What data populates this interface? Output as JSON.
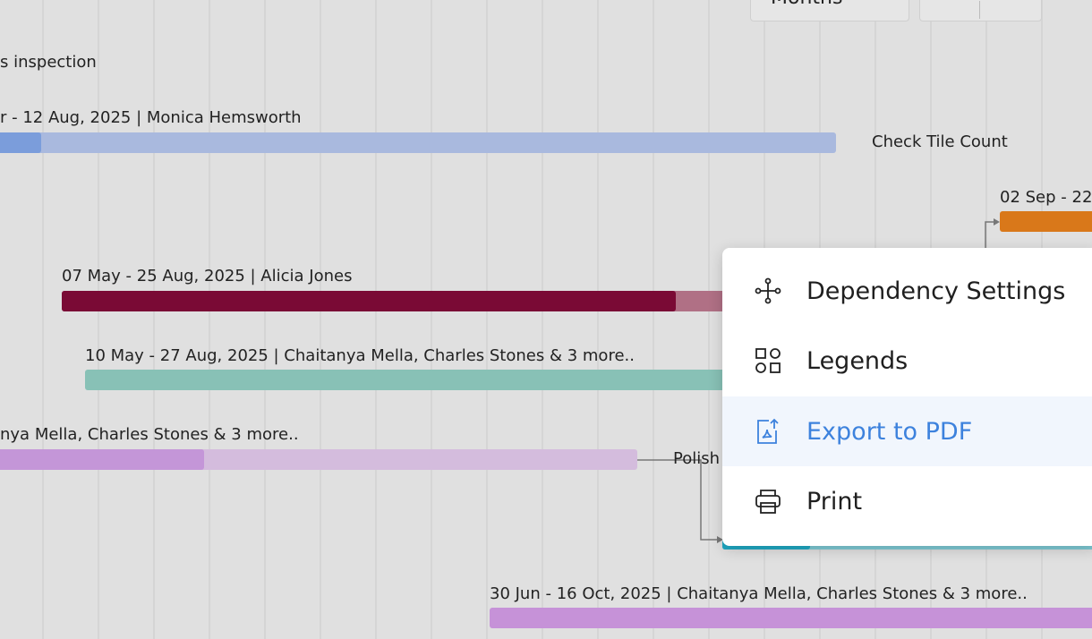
{
  "toolbar": {
    "view_button": "Months"
  },
  "tasks": [
    {
      "label": "s inspection"
    },
    {
      "label": "r - 12 Aug, 2025 | Monica Hemsworth"
    },
    {
      "label": "Check Tile Count"
    },
    {
      "label": "02 Sep - 22"
    },
    {
      "label": "07 May - 25 Aug, 2025 | Alicia Jones"
    },
    {
      "label": "10 May - 27 Aug, 2025 | Chaitanya Mella, Charles Stones & 3 more.."
    },
    {
      "label": "nya Mella, Charles Stones & 3 more.."
    },
    {
      "label": "Polish"
    },
    {
      "label": "30 Jun - 16 Oct, 2025 | Chaitanya Mella, Charles Stones & 3 more.."
    }
  ],
  "menu": {
    "items": [
      {
        "label": "Dependency Settings"
      },
      {
        "label": "Legends"
      },
      {
        "label": "Export to PDF"
      },
      {
        "label": "Print"
      }
    ]
  }
}
